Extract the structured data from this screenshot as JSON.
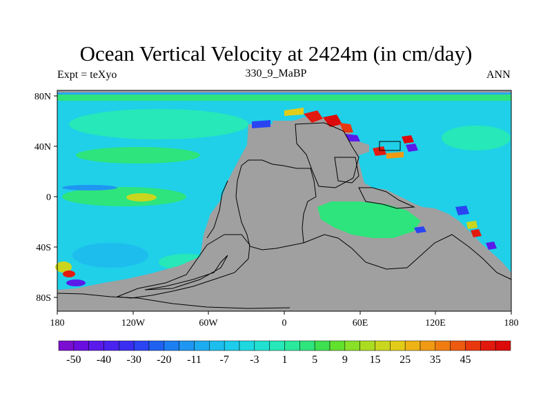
{
  "title": "Ocean Vertical Velocity at 2424m (in cm/day)",
  "left_subtitle": "Expt = teXyo",
  "center_subtitle": "330_9_MaBP",
  "right_subtitle": "ANN",
  "x_ticks": [
    "180",
    "120W",
    "60W",
    "0",
    "60E",
    "120E",
    "180"
  ],
  "y_ticks": [
    "80N",
    "40N",
    "0",
    "40S",
    "80S"
  ],
  "colorbar": {
    "colors": [
      "#7a0ed1",
      "#6a0ee0",
      "#5a1aea",
      "#4a22ee",
      "#3a2ef0",
      "#2a44f2",
      "#1f62f2",
      "#1d7ef2",
      "#1f96f2",
      "#1eacf0",
      "#1dbdee",
      "#1dccea",
      "#1ed8e0",
      "#22e0d0",
      "#26e8b8",
      "#2ae89c",
      "#2ee47c",
      "#3ee050",
      "#62e02e",
      "#88e028",
      "#acdc22",
      "#cad61e",
      "#e2cc1a",
      "#eeb416",
      "#f09a14",
      "#f07c12",
      "#ec5a10",
      "#e8380e",
      "#e21a0e",
      "#dc0a0a"
    ],
    "labels": [
      "-50",
      "-40",
      "-30",
      "-20",
      "-11",
      "-7",
      "-3",
      "1",
      "5",
      "9",
      "15",
      "25",
      "35",
      "45"
    ]
  },
  "colors": {
    "ocean_background": "#1fd0e8",
    "land": "#a0a0a0",
    "coastline": "#000000"
  }
}
